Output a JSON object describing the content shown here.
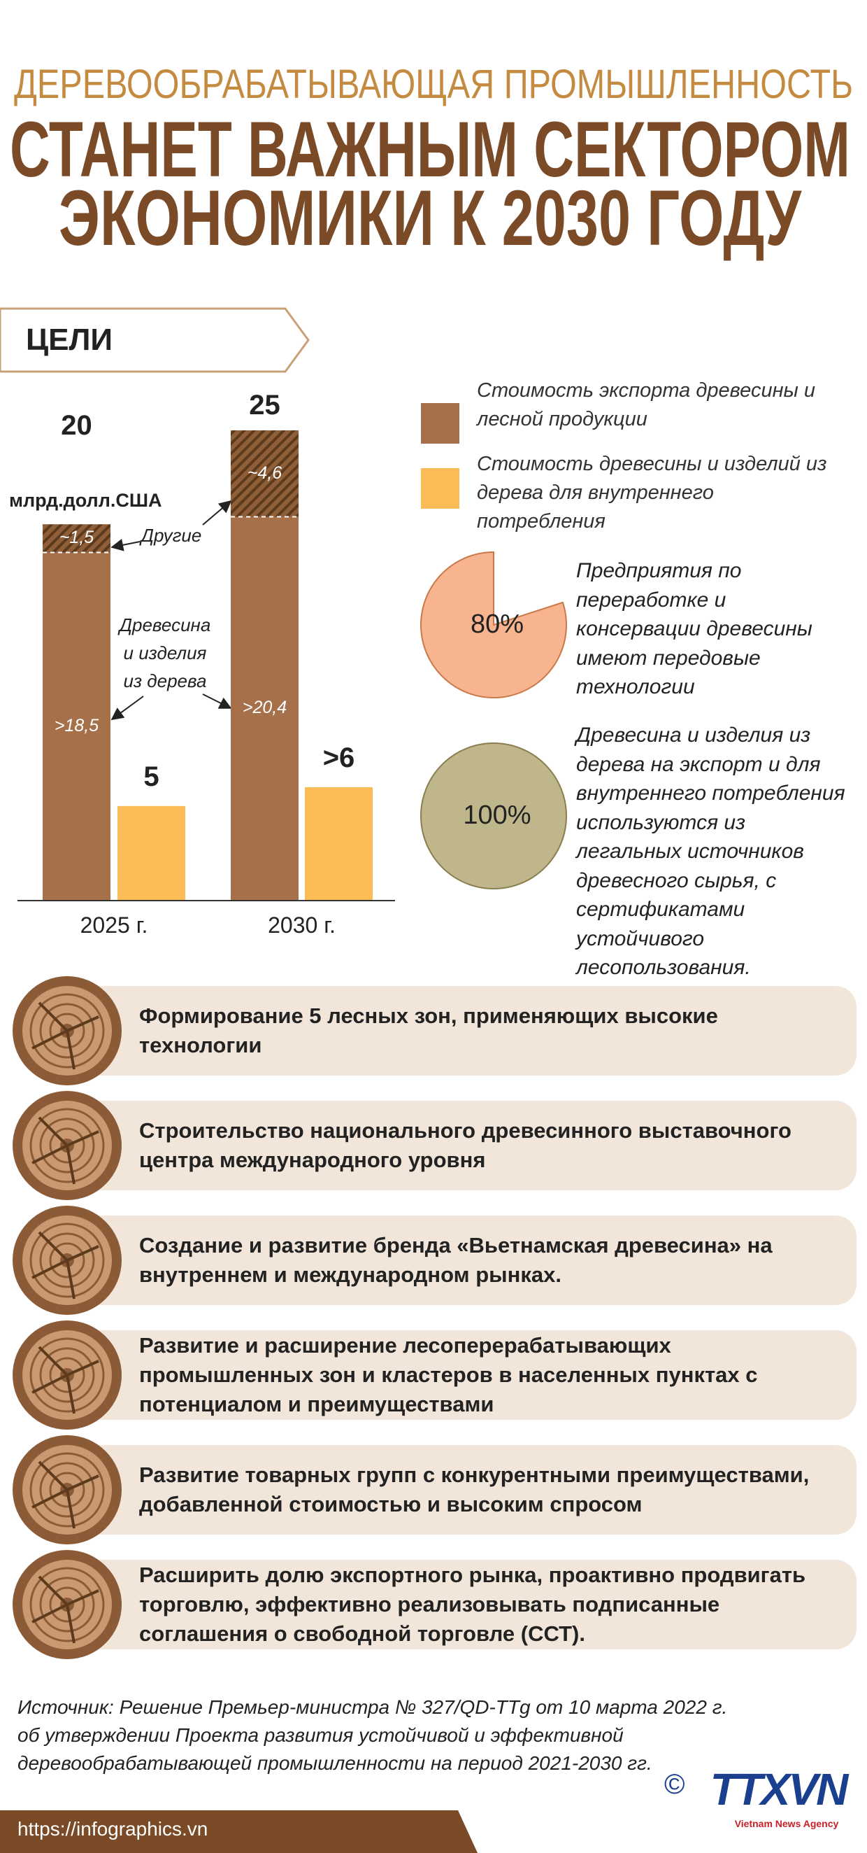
{
  "header": {
    "kicker": "ДЕРЕВООБРАБАТЫВАЮЩАЯ ПРОМЫШЛЕННОСТЬ",
    "title_lines": [
      "СТАНЕТ ВАЖНЫМ СЕКТОРОМ",
      "ЭКОНОМИКИ К 2030 ГОДУ"
    ]
  },
  "section_label": "ЦЕЛИ",
  "chart_data": [
    {
      "type": "bar",
      "unit": "млрд.долл.США",
      "categories": [
        "2025 г.",
        "2030 г."
      ],
      "ylim": [
        0,
        25
      ],
      "series": [
        {
          "name": "Стоимость экспорта древесины и лесной продукции",
          "color": "#a6714a",
          "totals": [
            20,
            25
          ],
          "parts": [
            {
              "name": "Древесина и изделия из дерева",
              "values": [
                18.5,
                20.4
              ],
              "value_labels": [
                ">18,5",
                ">20,4"
              ]
            },
            {
              "name": "Другие",
              "color": "#8f5f39",
              "hatch": true,
              "values": [
                1.5,
                4.6
              ],
              "value_labels": [
                "~1,5",
                "~4,6"
              ]
            }
          ]
        },
        {
          "name": "Стоимость древесины и изделий из дерева для внутреннего потребления",
          "color": "#fbbc58",
          "values": [
            5,
            6
          ],
          "value_labels": [
            "5",
            ">6"
          ]
        }
      ]
    },
    {
      "type": "pie",
      "values": [
        80
      ],
      "value_labels": [
        "80%"
      ],
      "color": "#f8b38f",
      "caption": "Предприятия по переработке и консервации древесины имеют передовые технологии"
    },
    {
      "type": "pie",
      "values": [
        100
      ],
      "value_labels": [
        "100%"
      ],
      "color": "#bfb78b",
      "caption": "Древесина и изделия из дерева на экспорт и для внутреннего потребления используются из легальных источников древесного сырья, с сертификатами устойчивого лесопользования."
    }
  ],
  "goals": [
    "Формирование 5 лесных зон, применяющих высокие технологии",
    "Строительство национального древесинного выставочного центра международного уровня",
    "Создание и развитие бренда «Вьетнамская древесина» на внутреннем и международном рынках.",
    "Развитие и расширение лесоперерабатывающих промышленных зон и кластеров в населенных пунктах с потенциалом и преимуществами",
    "Развитие товарных групп с конкурентными преимуществами, добавленной стоимостью и высоким спросом",
    "Расширить долю экспортного рынка, проактивно продвигать торговлю, эффективно реализовывать подписанные соглашения о свободной торговле (ССТ)."
  ],
  "source": "Источник: Решение Премьер-министра № 327/QD-TTg от 10 марта 2022 г. об утверждении Проекта развития устойчивой и эффективной деревообрабатывающей промышленности на период 2021-2030 гг.",
  "footer": {
    "url": "https://infographics.vn",
    "copyright": "©",
    "logo": "TTXVN",
    "logo_sub": "Vietnam News Agency"
  }
}
